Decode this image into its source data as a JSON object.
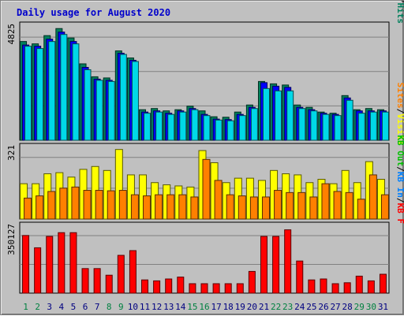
{
  "chart_data": {
    "type": "bar",
    "title": "Daily usage for August 2020",
    "colors": {
      "hits": "#00805c",
      "files": "#0000ff",
      "pages": "#00d8e8",
      "visits": "#ffff00",
      "sites": "#ff8000",
      "kb_in": "#0080ff",
      "kb_out": "#00c000",
      "kb_f": "#ff0000",
      "weekday_label": "#000080",
      "weekend_label": "#008040",
      "title": "#0000cc"
    },
    "categories": [
      "1",
      "2",
      "3",
      "4",
      "5",
      "6",
      "7",
      "8",
      "9",
      "10",
      "11",
      "12",
      "13",
      "14",
      "15",
      "16",
      "17",
      "18",
      "19",
      "20",
      "21",
      "22",
      "23",
      "24",
      "25",
      "26",
      "27",
      "28",
      "29",
      "30",
      "31"
    ],
    "weekend_days": [
      "1",
      "2",
      "8",
      "9",
      "15",
      "16",
      "22",
      "23",
      "29",
      "30"
    ],
    "panels": [
      {
        "id": "top",
        "max_label": "4825",
        "ymax": 4825,
        "legend": [
          {
            "text": "Hits",
            "color": "#00805c"
          },
          {
            "text": "Files",
            "color": "#0000ff"
          },
          {
            "text": "Pages",
            "color": "#00d8e8"
          }
        ],
        "series": [
          {
            "name": "Hits",
            "values": [
              4200,
              4100,
              4450,
              4750,
              4350,
              3250,
              2700,
              2650,
              3800,
              3500,
              1300,
              1350,
              1250,
              1300,
              1450,
              1250,
              1000,
              980,
              1200,
              1500,
              2500,
              2400,
              2350,
              1500,
              1400,
              1200,
              1150,
              1900,
              1300,
              1350,
              1300
            ]
          },
          {
            "name": "Files",
            "values": [
              4050,
              4000,
              4300,
              4600,
              4200,
              3100,
              2600,
              2550,
              3700,
              3400,
              1200,
              1250,
              1150,
              1250,
              1350,
              1100,
              900,
              880,
              1100,
              1400,
              2450,
              2300,
              2250,
              1400,
              1300,
              1150,
              1100,
              1800,
              1250,
              1250,
              1250
            ]
          },
          {
            "name": "Pages",
            "values": [
              4000,
              3900,
              4200,
              4500,
              4100,
              3000,
              2550,
              2500,
              3650,
              3350,
              1150,
              1200,
              1100,
              1200,
              1300,
              1050,
              860,
              830,
              1050,
              1350,
              2200,
              2100,
              2100,
              1350,
              1250,
              1100,
              1050,
              1700,
              1150,
              1200,
              1200
            ]
          }
        ]
      },
      {
        "id": "middle",
        "max_label": "321",
        "ymax": 321,
        "legend": [
          {
            "text": "Visits",
            "color": "#ffff00"
          },
          {
            "text": "Sites",
            "color": "#ff8000"
          }
        ],
        "series": [
          {
            "name": "Visits",
            "values": [
              160,
              160,
              205,
              210,
              190,
              225,
              238,
              220,
              315,
              200,
              200,
              165,
              155,
              150,
              145,
              310,
              255,
              165,
              185,
              185,
              175,
              220,
              205,
              200,
              165,
              180,
              160,
              220,
              165,
              260,
              180
            ]
          },
          {
            "name": "Sites",
            "values": [
              95,
              105,
              125,
              140,
              145,
              130,
              130,
              128,
              130,
              110,
              105,
              110,
              110,
              110,
              100,
              270,
              175,
              110,
              105,
              100,
              100,
              130,
              120,
              120,
              100,
              160,
              125,
              120,
              90,
              200,
              110
            ]
          }
        ]
      },
      {
        "id": "bottom",
        "max_label": "350127",
        "ymax": 350127,
        "legend": [
          {
            "text": "KB F",
            "color": "#ff0000"
          },
          {
            "text": "KB In",
            "color": "#0080ff"
          },
          {
            "text": "KB Out",
            "color": "#00c000"
          }
        ],
        "series": [
          {
            "name": "KB F",
            "values": [
              305000,
              240000,
              300000,
              320000,
              320000,
              130000,
              130000,
              95000,
              200000,
              225000,
              70000,
              65000,
              75000,
              85000,
              50000,
              50000,
              50000,
              50000,
              50000,
              115000,
              300000,
              300000,
              335000,
              170000,
              70000,
              75000,
              50000,
              55000,
              90000,
              65000,
              100000
            ]
          }
        ]
      }
    ]
  }
}
